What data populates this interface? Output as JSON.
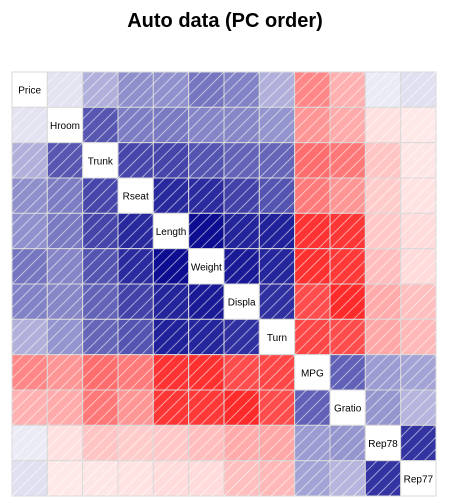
{
  "chart_data": {
    "type": "heatmap",
    "title": "Auto data (PC order)",
    "variables": [
      "Price",
      "Hroom",
      "Trunk",
      "Rseat",
      "Length",
      "Weight",
      "Displa",
      "Turn",
      "MPG",
      "Gratio",
      "Rep78",
      "Rep77"
    ],
    "matrix": [
      [
        1.0,
        0.11,
        0.31,
        0.44,
        0.43,
        0.54,
        0.49,
        0.31,
        -0.47,
        -0.31,
        0.08,
        0.12
      ],
      [
        0.11,
        1.0,
        0.66,
        0.51,
        0.52,
        0.48,
        0.47,
        0.42,
        -0.41,
        -0.33,
        -0.12,
        -0.09
      ],
      [
        0.31,
        0.66,
        1.0,
        0.72,
        0.73,
        0.67,
        0.61,
        0.6,
        -0.57,
        -0.53,
        -0.23,
        -0.1
      ],
      [
        0.44,
        0.51,
        0.72,
        1.0,
        0.84,
        0.83,
        0.74,
        0.67,
        -0.52,
        -0.41,
        -0.2,
        -0.11
      ],
      [
        0.43,
        0.52,
        0.73,
        0.84,
        1.0,
        0.95,
        0.86,
        0.87,
        -0.8,
        -0.79,
        -0.22,
        -0.14
      ],
      [
        0.54,
        0.48,
        0.67,
        0.83,
        0.95,
        1.0,
        0.9,
        0.85,
        -0.81,
        -0.78,
        -0.26,
        -0.14
      ],
      [
        0.49,
        0.47,
        0.61,
        0.74,
        0.86,
        0.9,
        1.0,
        0.81,
        -0.7,
        -0.83,
        -0.33,
        -0.25
      ],
      [
        0.31,
        0.42,
        0.6,
        0.67,
        0.87,
        0.85,
        0.81,
        1.0,
        -0.72,
        -0.7,
        -0.35,
        -0.28
      ],
      [
        -0.47,
        -0.41,
        -0.57,
        -0.52,
        -0.8,
        -0.81,
        -0.7,
        -0.72,
        1.0,
        0.62,
        0.39,
        0.36
      ],
      [
        -0.31,
        -0.33,
        -0.53,
        -0.41,
        -0.79,
        -0.78,
        -0.83,
        -0.7,
        0.62,
        1.0,
        0.41,
        0.29
      ],
      [
        0.08,
        -0.12,
        -0.23,
        -0.2,
        -0.22,
        -0.26,
        -0.33,
        -0.35,
        0.39,
        0.41,
        1.0,
        0.8
      ],
      [
        0.12,
        -0.09,
        -0.1,
        -0.11,
        -0.14,
        -0.14,
        -0.25,
        -0.28,
        0.36,
        0.29,
        0.8,
        1.0
      ]
    ],
    "color_positive": "#00008B",
    "color_negative": "#FF0000",
    "color_neutral": "#FFFFFF",
    "grid": true,
    "legend": "none"
  }
}
